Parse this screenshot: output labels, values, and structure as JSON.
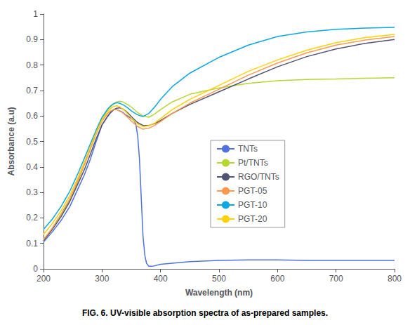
{
  "chart_data": {
    "type": "line",
    "xlabel": "Wavelength (nm)",
    "ylabel": "Absorbance (a.u)",
    "caption": "FIG. 6. UV-visible absorption spectra of as-prepared samples.",
    "xlim": [
      200,
      800
    ],
    "ylim": [
      0,
      1.0
    ],
    "xticks": [
      200,
      300,
      400,
      500,
      600,
      700,
      800
    ],
    "yticks": [
      0,
      0.1,
      0.2,
      0.3,
      0.4,
      0.5,
      0.6,
      0.7,
      0.8,
      0.9,
      1
    ],
    "grid": false,
    "legend": "center",
    "series": [
      {
        "name": "TNTs",
        "x": [
          200,
          215,
          230,
          245,
          260,
          270,
          280,
          290,
          300,
          310,
          315,
          320,
          325,
          330,
          335,
          340,
          345,
          350,
          355,
          358,
          361,
          364,
          367,
          370,
          373,
          376,
          380,
          385,
          390,
          400,
          420,
          450,
          500,
          550,
          600,
          650,
          700,
          750,
          800
        ],
        "values": [
          0.105,
          0.145,
          0.19,
          0.245,
          0.32,
          0.37,
          0.43,
          0.5,
          0.565,
          0.6,
          0.615,
          0.625,
          0.625,
          0.62,
          0.615,
          0.605,
          0.598,
          0.59,
          0.58,
          0.565,
          0.52,
          0.43,
          0.28,
          0.13,
          0.055,
          0.022,
          0.01,
          0.01,
          0.012,
          0.018,
          0.022,
          0.028,
          0.033,
          0.035,
          0.035,
          0.033,
          0.033,
          0.033,
          0.033
        ]
      },
      {
        "name": "Pt/TNTs",
        "x": [
          200,
          215,
          230,
          245,
          260,
          270,
          280,
          290,
          300,
          310,
          315,
          320,
          325,
          330,
          335,
          340,
          345,
          350,
          360,
          370,
          380,
          390,
          400,
          420,
          450,
          500,
          550,
          600,
          650,
          700,
          750,
          800
        ],
        "values": [
          0.11,
          0.155,
          0.21,
          0.27,
          0.35,
          0.41,
          0.47,
          0.535,
          0.59,
          0.625,
          0.638,
          0.648,
          0.655,
          0.658,
          0.656,
          0.65,
          0.643,
          0.635,
          0.615,
          0.6,
          0.595,
          0.608,
          0.625,
          0.655,
          0.685,
          0.71,
          0.728,
          0.738,
          0.743,
          0.745,
          0.748,
          0.75
        ]
      },
      {
        "name": "RGO/TNTs",
        "x": [
          200,
          215,
          230,
          245,
          260,
          270,
          280,
          290,
          300,
          310,
          315,
          320,
          325,
          330,
          335,
          340,
          345,
          350,
          360,
          370,
          380,
          390,
          400,
          420,
          450,
          500,
          550,
          600,
          650,
          700,
          750,
          800
        ],
        "values": [
          0.11,
          0.155,
          0.205,
          0.265,
          0.34,
          0.39,
          0.45,
          0.51,
          0.565,
          0.6,
          0.614,
          0.625,
          0.63,
          0.632,
          0.628,
          0.62,
          0.61,
          0.598,
          0.575,
          0.563,
          0.563,
          0.57,
          0.582,
          0.61,
          0.645,
          0.695,
          0.745,
          0.793,
          0.833,
          0.863,
          0.885,
          0.9
        ]
      },
      {
        "name": "PGT-05",
        "x": [
          200,
          215,
          230,
          245,
          260,
          270,
          280,
          290,
          300,
          310,
          315,
          320,
          325,
          330,
          335,
          340,
          345,
          350,
          360,
          370,
          380,
          390,
          400,
          420,
          450,
          500,
          550,
          600,
          650,
          700,
          750,
          800
        ],
        "values": [
          0.115,
          0.16,
          0.215,
          0.275,
          0.355,
          0.41,
          0.47,
          0.53,
          0.58,
          0.61,
          0.62,
          0.625,
          0.625,
          0.62,
          0.613,
          0.603,
          0.592,
          0.58,
          0.56,
          0.548,
          0.552,
          0.563,
          0.578,
          0.61,
          0.65,
          0.705,
          0.76,
          0.808,
          0.848,
          0.878,
          0.898,
          0.912
        ]
      },
      {
        "name": "PGT-10",
        "x": [
          200,
          215,
          230,
          245,
          260,
          270,
          280,
          290,
          300,
          310,
          315,
          320,
          325,
          330,
          335,
          340,
          345,
          350,
          360,
          370,
          380,
          390,
          400,
          420,
          450,
          500,
          550,
          600,
          650,
          700,
          750,
          800
        ],
        "values": [
          0.155,
          0.195,
          0.245,
          0.305,
          0.38,
          0.435,
          0.49,
          0.545,
          0.595,
          0.628,
          0.64,
          0.648,
          0.652,
          0.65,
          0.645,
          0.638,
          0.63,
          0.62,
          0.605,
          0.598,
          0.61,
          0.635,
          0.665,
          0.715,
          0.768,
          0.83,
          0.878,
          0.912,
          0.93,
          0.94,
          0.945,
          0.948
        ]
      },
      {
        "name": "PGT-20",
        "x": [
          200,
          215,
          230,
          245,
          260,
          270,
          280,
          290,
          300,
          310,
          315,
          320,
          325,
          330,
          335,
          340,
          345,
          350,
          360,
          370,
          380,
          390,
          400,
          420,
          450,
          500,
          550,
          600,
          650,
          700,
          750,
          800
        ],
        "values": [
          0.135,
          0.178,
          0.228,
          0.288,
          0.365,
          0.42,
          0.478,
          0.535,
          0.585,
          0.618,
          0.63,
          0.638,
          0.64,
          0.636,
          0.628,
          0.618,
          0.606,
          0.592,
          0.57,
          0.558,
          0.562,
          0.572,
          0.59,
          0.625,
          0.665,
          0.72,
          0.775,
          0.82,
          0.858,
          0.888,
          0.908,
          0.92
        ]
      }
    ]
  }
}
